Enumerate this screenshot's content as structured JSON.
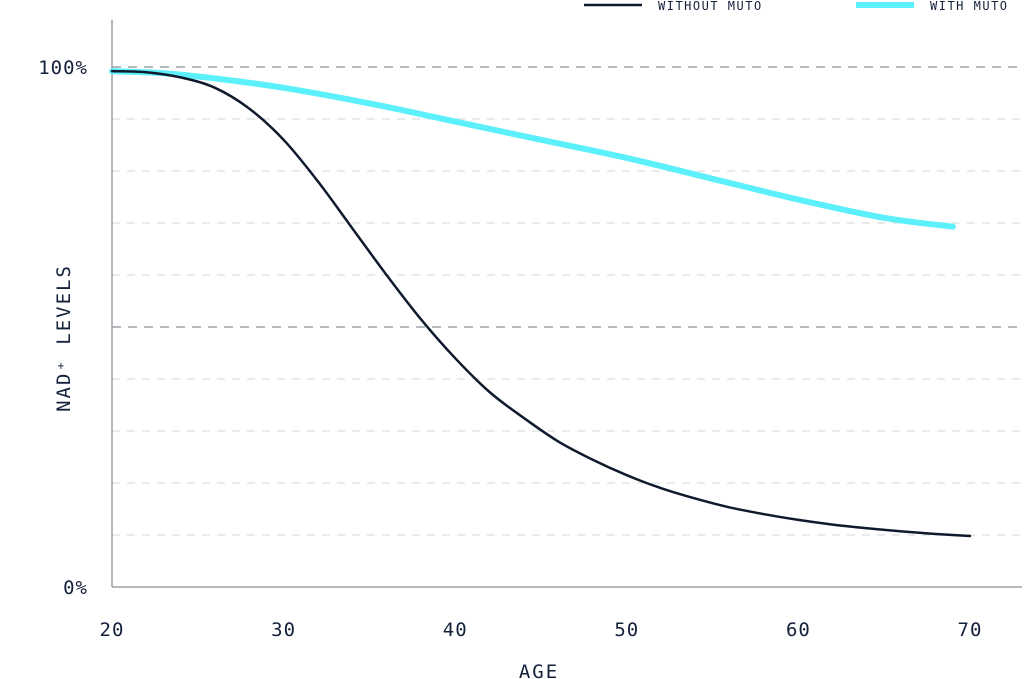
{
  "chart_data": {
    "type": "line",
    "title": "",
    "xlabel": "AGE",
    "ylabel": "NAD⁺ LEVELS",
    "xlim": [
      20,
      73
    ],
    "ylim": [
      0,
      100
    ],
    "x_ticks": [
      20,
      30,
      40,
      50,
      60,
      70
    ],
    "x_tick_labels": [
      "20",
      "30",
      "40",
      "50",
      "60",
      "70"
    ],
    "y_ticks": [
      0,
      100
    ],
    "y_tick_labels": [
      "0%",
      "100%"
    ],
    "grid": "horizontal dashed every 10%",
    "legend_position": "top-right",
    "series": [
      {
        "name": "WITHOUT MUTO",
        "color": "#0f1b2d",
        "x": [
          20,
          22,
          24,
          26,
          28,
          30,
          32,
          34,
          36,
          38,
          40,
          42,
          44,
          46,
          48,
          50,
          52,
          54,
          56,
          58,
          60,
          62,
          64,
          66,
          68,
          70
        ],
        "y": [
          99.2,
          99.0,
          98.0,
          96.0,
          92.0,
          86.0,
          78.0,
          69.0,
          60.0,
          51.5,
          44.0,
          37.5,
          32.5,
          28.0,
          24.5,
          21.5,
          19.0,
          17.0,
          15.3,
          14.0,
          12.9,
          12.0,
          11.3,
          10.7,
          10.2,
          9.8
        ]
      },
      {
        "name": "WITH MUTO",
        "color": "#5cf0fb",
        "x": [
          20,
          23,
          26,
          30,
          35,
          40,
          45,
          50,
          55,
          60,
          65,
          69
        ],
        "y": [
          99.2,
          98.8,
          97.8,
          96.0,
          93.0,
          89.5,
          86.0,
          82.5,
          78.5,
          74.5,
          71.0,
          69.3
        ]
      }
    ]
  }
}
